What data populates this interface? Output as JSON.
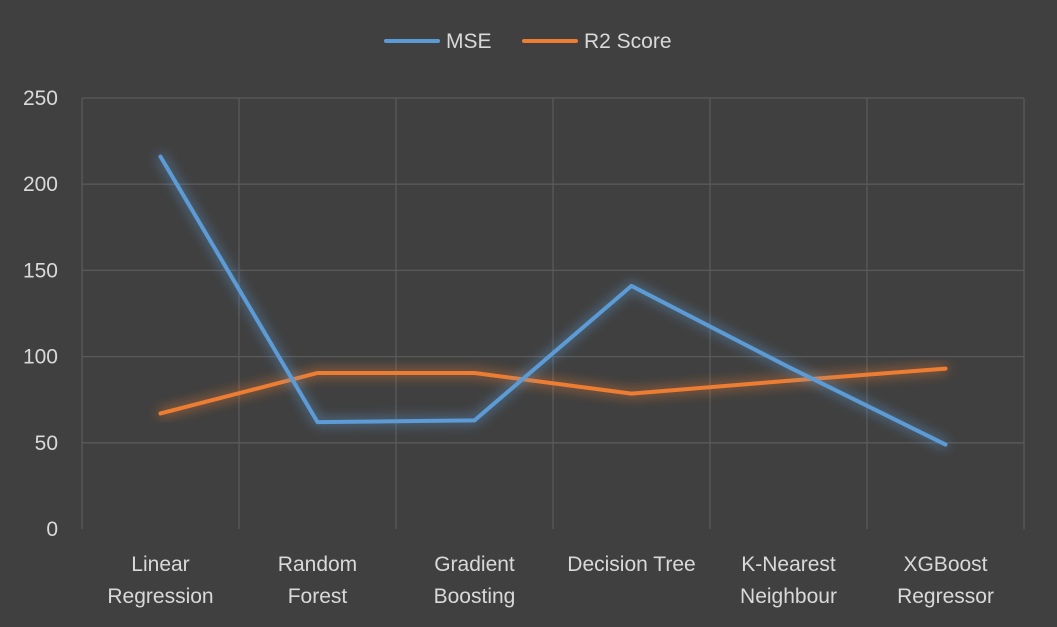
{
  "chart_data": {
    "type": "line",
    "title": "",
    "xlabel": "",
    "ylabel": "",
    "categories": [
      [
        "Linear",
        "Regression"
      ],
      [
        "Random",
        "Forest"
      ],
      [
        "Gradient",
        "Boosting"
      ],
      [
        "Decision Tree"
      ],
      [
        "K-Nearest",
        "Neighbour"
      ],
      [
        "XGBoost",
        "Regressor"
      ]
    ],
    "ylim": [
      0,
      250
    ],
    "yticks": [
      0,
      50,
      100,
      150,
      200,
      250
    ],
    "grid": true,
    "legend_position": "top-center",
    "series": [
      {
        "name": "MSE",
        "color": "#5b9bd5",
        "values": [
          216,
          62,
          63,
          141,
          94,
          49
        ]
      },
      {
        "name": "R2 Score",
        "color": "#ed7d31",
        "values": [
          67,
          90.5,
          90.5,
          78.5,
          86,
          93
        ]
      }
    ]
  }
}
